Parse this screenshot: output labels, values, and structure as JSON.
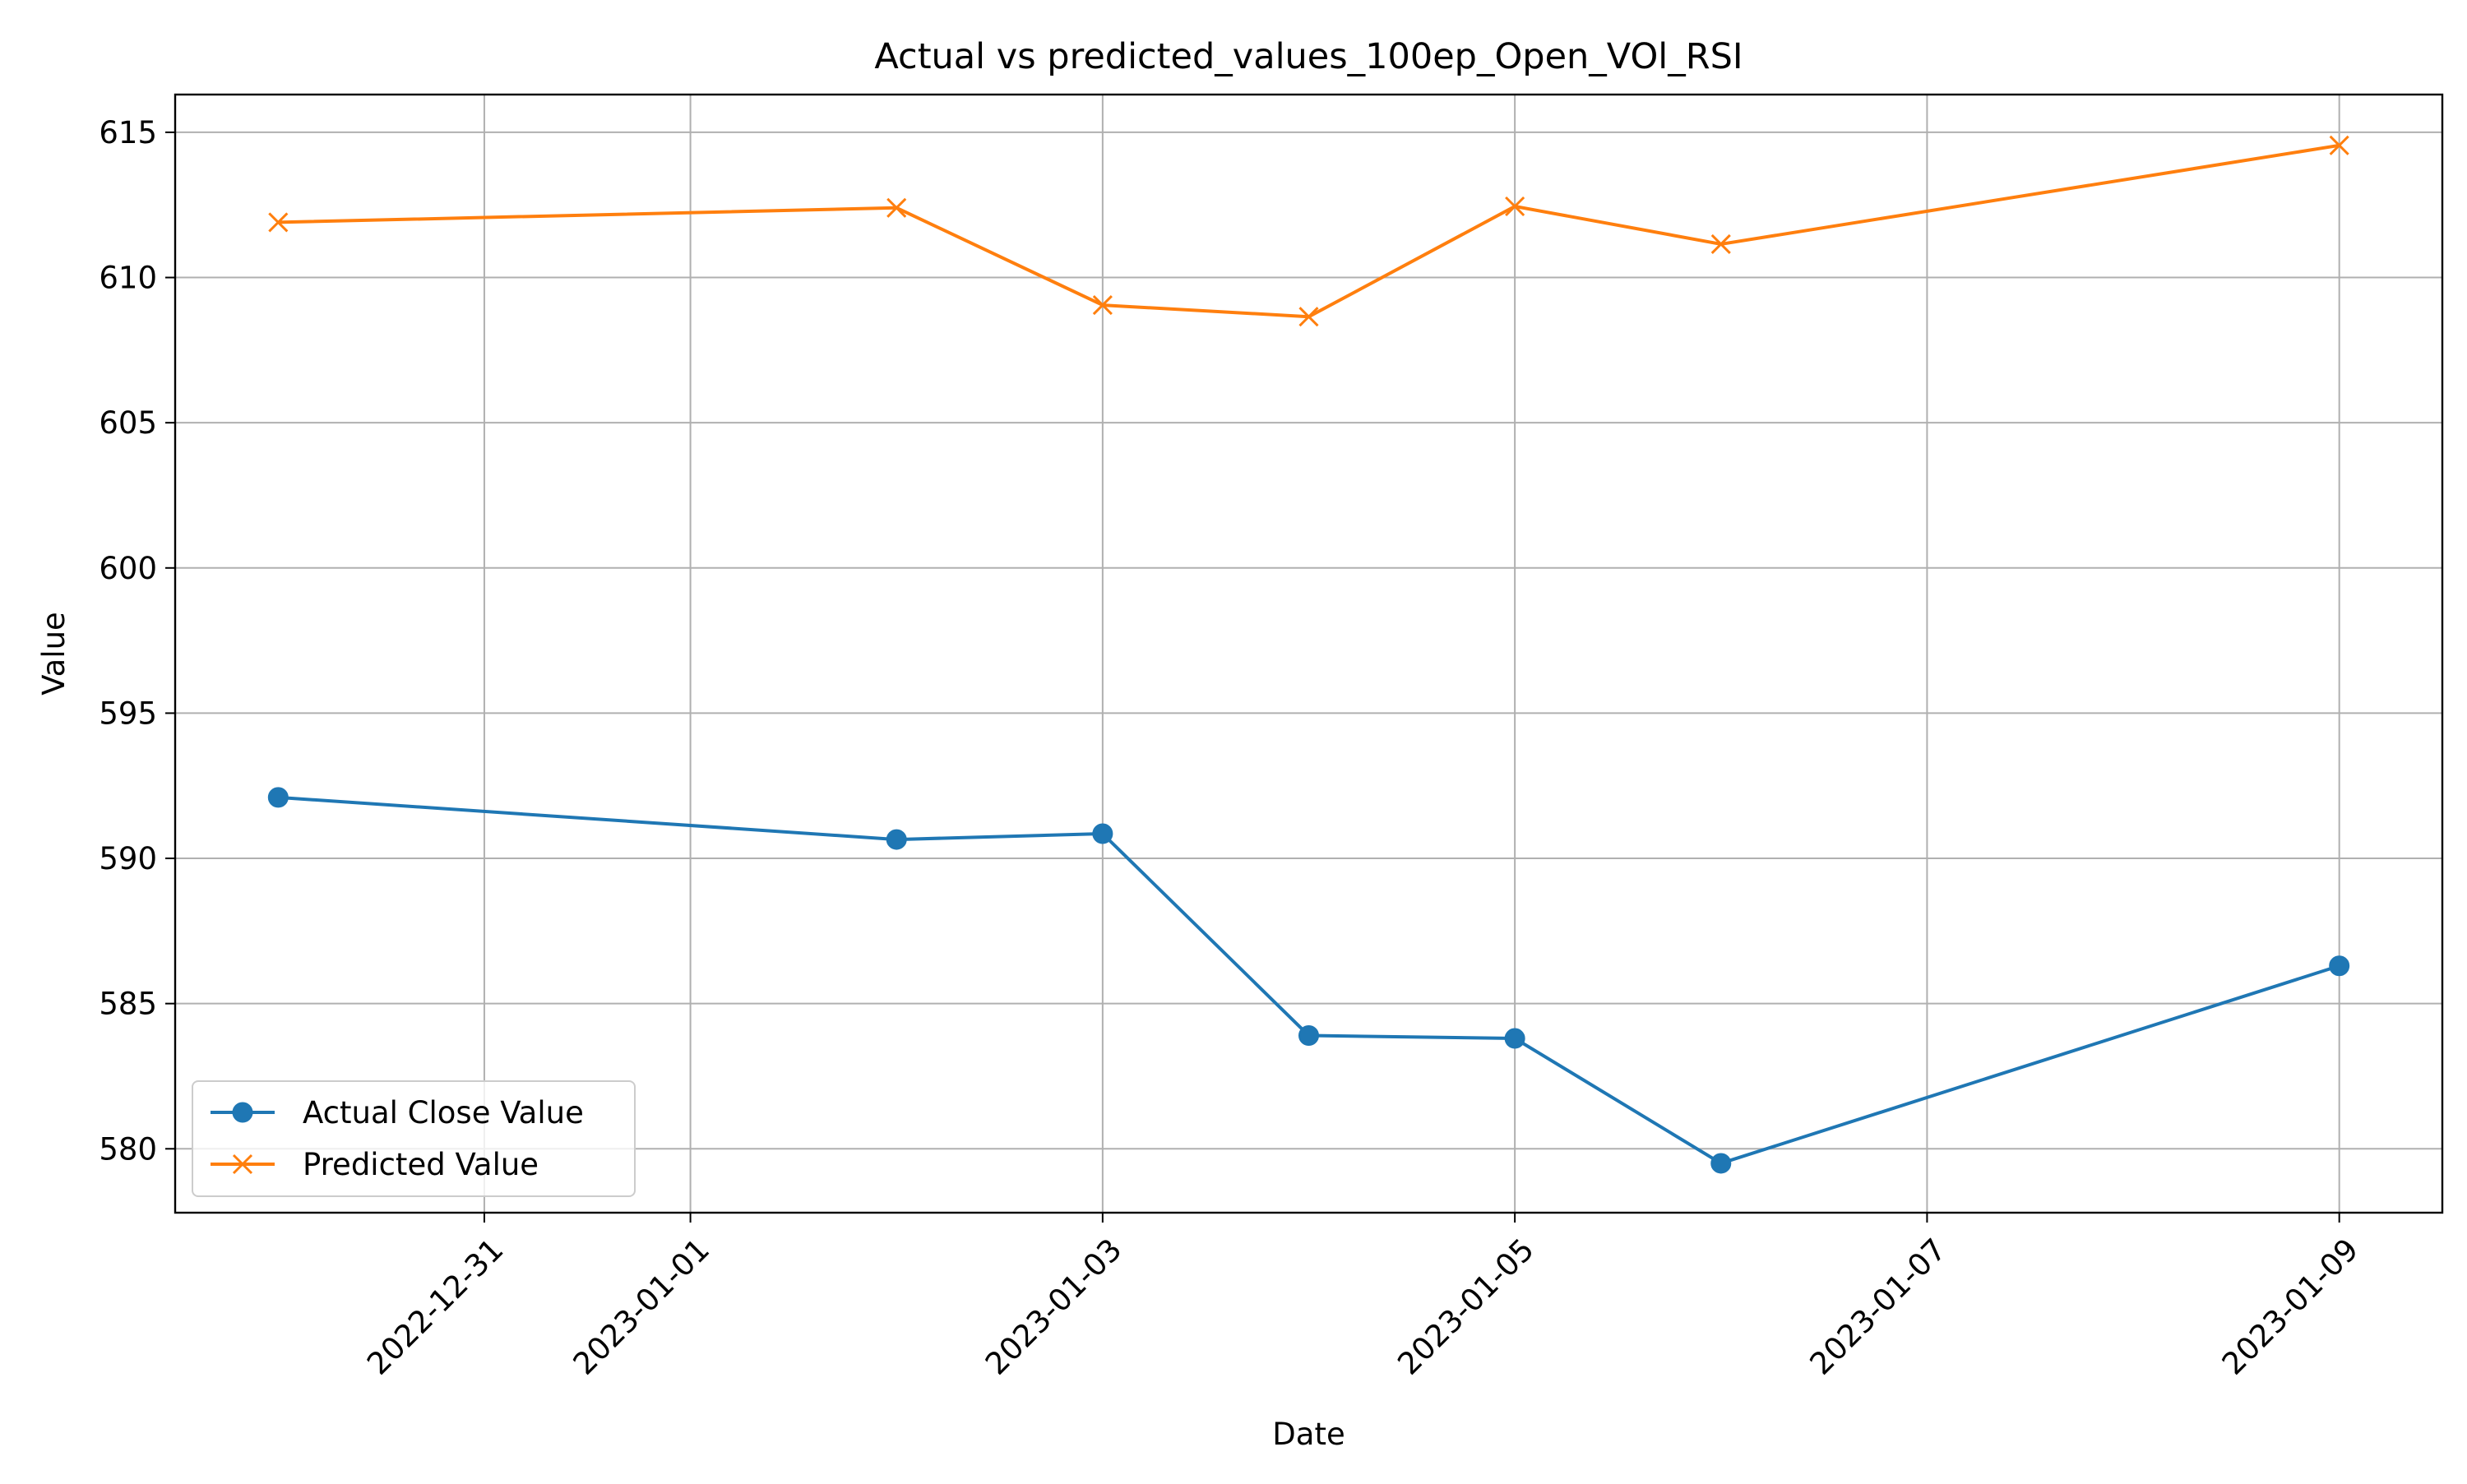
{
  "chart_data": {
    "type": "line",
    "title": "Actual vs predicted_values_100ep_Open_VOl_RSI",
    "xlabel": "Date",
    "ylabel": "Value",
    "x_axis_type": "date",
    "xlim": [
      "2022-12-29T12:00",
      "2023-01-09T12:00"
    ],
    "ylim": [
      577.8,
      616.3
    ],
    "y_ticks": [
      580,
      585,
      590,
      595,
      600,
      605,
      610,
      615
    ],
    "x_ticks": [
      "2022-12-31",
      "2023-01-01",
      "2023-01-03",
      "2023-01-05",
      "2023-01-07",
      "2023-01-09"
    ],
    "grid": true,
    "legend_position": "lower-left",
    "x": [
      "2022-12-30",
      "2023-01-02",
      "2023-01-03",
      "2023-01-04",
      "2023-01-05",
      "2023-01-06",
      "2023-01-09"
    ],
    "series": [
      {
        "name": "Actual Close Value",
        "marker": "circle",
        "color": "#1f77b4",
        "values": [
          592.1,
          590.65,
          590.85,
          583.9,
          583.8,
          579.5,
          586.3
        ]
      },
      {
        "name": "Predicted Value",
        "marker": "x",
        "color": "#ff7f0e",
        "values": [
          611.9,
          612.4,
          609.05,
          608.65,
          612.45,
          611.15,
          614.55
        ]
      }
    ]
  }
}
